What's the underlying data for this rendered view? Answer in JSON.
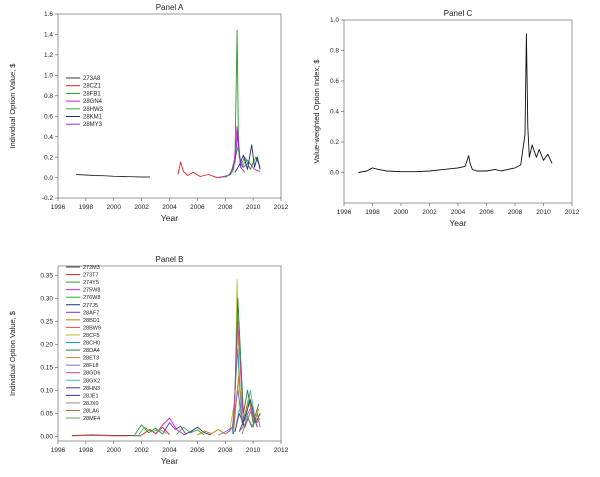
{
  "chart_data": [
    {
      "panel": "A",
      "type": "line",
      "title": "Panel A",
      "xlabel": "Year",
      "ylabel": "Individual Option Value, $",
      "xlim": [
        1996,
        2012
      ],
      "ylim": [
        -0.2,
        1.6
      ],
      "xticks": [
        1996,
        1998,
        2000,
        2002,
        2004,
        2006,
        2008,
        2010,
        2012
      ],
      "yticks": [
        -0.2,
        0.0,
        0.2,
        0.4,
        0.6,
        0.8,
        1.0,
        1.2,
        1.4,
        1.6
      ],
      "ytick_labels": [
        "-0.2",
        "0.0",
        "0.2",
        "0.4",
        "0.6",
        "0.8",
        "1.0",
        "1.2",
        "1.4",
        "1.6"
      ],
      "grid": false,
      "legend_position": "center-left",
      "series": [
        {
          "name": "273A8",
          "color": "#333333",
          "x": [
            1997.3,
            1998.0,
            1998.6,
            1999.3,
            2000.0,
            2000.6,
            2001.3,
            2002.0,
            2002.6
          ],
          "y": [
            0.03,
            0.025,
            0.02,
            0.018,
            0.012,
            0.01,
            0.008,
            0.005,
            0.005
          ]
        },
        {
          "name": "28CZ1",
          "color": "#e02020",
          "x": [
            2004.6,
            2004.8,
            2005.0,
            2005.3,
            2005.7,
            2006.2,
            2006.8,
            2007.4,
            2008.0
          ],
          "y": [
            0.03,
            0.15,
            0.06,
            0.02,
            0.05,
            0.01,
            0.03,
            0.0,
            0.01
          ]
        },
        {
          "name": "28FB1",
          "color": "#2a9a2a",
          "x": [
            2007.5,
            2008.0,
            2008.4,
            2008.7,
            2008.85,
            2008.95,
            2009.1,
            2009.4,
            2009.8,
            2010.2,
            2010.5
          ],
          "y": [
            0.0,
            0.01,
            0.03,
            0.2,
            1.44,
            0.3,
            0.12,
            0.2,
            0.08,
            0.2,
            0.1
          ]
        },
        {
          "name": "28GN4",
          "color": "#d020d0",
          "x": [
            2007.5,
            2008.2,
            2008.6,
            2008.85,
            2009.0,
            2009.3,
            2009.7,
            2010.1,
            2010.5
          ],
          "y": [
            0.0,
            0.02,
            0.08,
            0.5,
            0.2,
            0.1,
            0.15,
            0.08,
            0.06
          ]
        },
        {
          "name": "28HW3",
          "color": "#30b030",
          "x": [
            2008.0,
            2008.5,
            2008.9,
            2009.2,
            2009.5,
            2009.9,
            2010.2,
            2010.5
          ],
          "y": [
            0.0,
            0.05,
            0.3,
            0.1,
            0.18,
            0.12,
            0.2,
            0.1
          ]
        },
        {
          "name": "28KM1",
          "color": "#1f2a80",
          "x": [
            2008.7,
            2009.0,
            2009.3,
            2009.6,
            2009.9,
            2010.1,
            2010.3,
            2010.5
          ],
          "y": [
            0.05,
            0.12,
            0.22,
            0.08,
            0.32,
            0.1,
            0.2,
            0.08
          ]
        },
        {
          "name": "28MY3",
          "color": "#8a2be2",
          "x": [
            2008.3,
            2008.7,
            2008.9,
            2009.1,
            2009.4
          ],
          "y": [
            0.02,
            0.15,
            0.45,
            0.1,
            0.05
          ]
        }
      ]
    },
    {
      "panel": "C",
      "type": "line",
      "title": "Panel C",
      "xlabel": "Year",
      "ylabel": "Value-weighted Option Index, $",
      "xlim": [
        1996,
        2012
      ],
      "ylim": [
        -0.2,
        1.0
      ],
      "xticks": [
        1996,
        1998,
        2000,
        2002,
        2004,
        2006,
        2008,
        2010,
        2012
      ],
      "yticks": [
        0.0,
        0.2,
        0.4,
        0.6,
        0.8,
        1.0
      ],
      "ytick_labels": [
        "0.0",
        "0.2",
        "0.4",
        "0.6",
        "0.8",
        "1.0"
      ],
      "grid": false,
      "series": [
        {
          "color": "#111111",
          "x": [
            1997.0,
            1997.6,
            1998.0,
            1998.4,
            1999.0,
            2000.0,
            2001.0,
            2002.0,
            2003.0,
            2004.0,
            2004.5,
            2004.75,
            2004.85,
            2005.0,
            2005.3,
            2006.0,
            2006.6,
            2007.0,
            2007.5,
            2008.0,
            2008.4,
            2008.7,
            2008.8,
            2008.9,
            2009.0,
            2009.2,
            2009.5,
            2009.7,
            2010.0,
            2010.3,
            2010.6
          ],
          "y": [
            0.0,
            0.01,
            0.03,
            0.02,
            0.01,
            0.005,
            0.005,
            0.01,
            0.02,
            0.03,
            0.04,
            0.11,
            0.06,
            0.02,
            0.01,
            0.01,
            0.02,
            0.01,
            0.02,
            0.03,
            0.05,
            0.25,
            0.91,
            0.3,
            0.1,
            0.18,
            0.1,
            0.15,
            0.08,
            0.12,
            0.06
          ]
        }
      ]
    },
    {
      "panel": "B",
      "type": "line",
      "title": "Panel B",
      "xlabel": "Year",
      "ylabel": "Individual Option Value, $",
      "xlim": [
        1996,
        2012
      ],
      "ylim": [
        -0.01,
        0.37
      ],
      "xticks": [
        1996,
        1998,
        2000,
        2002,
        2004,
        2006,
        2008,
        2010,
        2012
      ],
      "yticks": [
        0.0,
        0.05,
        0.1,
        0.15,
        0.2,
        0.25,
        0.3,
        0.35
      ],
      "ytick_labels": [
        "0.00",
        "0.05",
        "0.10",
        "0.15",
        "0.20",
        "0.25",
        "0.30",
        "0.35"
      ],
      "grid": false,
      "legend_position": "top-left",
      "series": [
        {
          "name": "272M3",
          "color": "#444444",
          "x": [
            1997.0,
            1998.5,
            2000.0,
            2001.0,
            2002.0
          ],
          "y": [
            0.002,
            0.003,
            0.002,
            0.002,
            0.001
          ]
        },
        {
          "name": "273T7",
          "color": "#e02020",
          "x": [
            2002.0,
            2002.6,
            2003.0,
            2003.5,
            2004.0
          ],
          "y": [
            0.003,
            0.015,
            0.006,
            0.02,
            0.004
          ]
        },
        {
          "name": "274Y5",
          "color": "#2a9a2a",
          "x": [
            2001.5,
            2002.0,
            2002.5,
            2003.0,
            2003.5
          ],
          "y": [
            0.004,
            0.025,
            0.008,
            0.018,
            0.005
          ]
        },
        {
          "name": "275W8",
          "color": "#d020d0",
          "x": [
            2003.0,
            2003.5,
            2004.0,
            2004.5,
            2005.0
          ],
          "y": [
            0.005,
            0.025,
            0.04,
            0.015,
            0.005
          ]
        },
        {
          "name": "276W8",
          "color": "#30b030",
          "x": [
            2004.5,
            2005.0,
            2005.5,
            2006.0,
            2006.5
          ],
          "y": [
            0.004,
            0.02,
            0.008,
            0.014,
            0.003
          ]
        },
        {
          "name": "277J5",
          "color": "#1f2a80",
          "x": [
            2005.0,
            2005.5,
            2006.0,
            2006.5,
            2007.0
          ],
          "y": [
            0.003,
            0.01,
            0.02,
            0.008,
            0.003
          ]
        },
        {
          "name": "28AF7",
          "color": "#8a2be2",
          "x": [
            2003.5,
            2004.0,
            2004.4,
            2004.8,
            2005.2
          ],
          "y": [
            0.005,
            0.03,
            0.015,
            0.022,
            0.004
          ]
        },
        {
          "name": "28BD1",
          "color": "#c08000",
          "x": [
            2006.0,
            2006.5,
            2007.0,
            2007.5,
            2008.0
          ],
          "y": [
            0.003,
            0.012,
            0.006,
            0.015,
            0.005
          ]
        },
        {
          "name": "28BW9",
          "color": "#e05050",
          "x": [
            1997.0,
            1998.0,
            1999.0,
            2000.0,
            2001.0
          ],
          "y": [
            0.001,
            0.002,
            0.002,
            0.001,
            0.001
          ]
        },
        {
          "name": "28CF5",
          "color": "#bdbd20",
          "x": [
            2008.3,
            2008.7,
            2008.85,
            2009.0,
            2009.3,
            2009.7,
            2010.1,
            2010.4
          ],
          "y": [
            0.01,
            0.08,
            0.34,
            0.06,
            0.03,
            0.09,
            0.03,
            0.06
          ]
        },
        {
          "name": "28CH0",
          "color": "#20a0c0",
          "x": [
            2008.5,
            2008.9,
            2009.2,
            2009.5,
            2009.9,
            2010.2
          ],
          "y": [
            0.005,
            0.19,
            0.03,
            0.05,
            0.02,
            0.04
          ]
        },
        {
          "name": "28DA4",
          "color": "#208040",
          "x": [
            2008.6,
            2008.9,
            2009.3,
            2009.6,
            2010.0,
            2010.4
          ],
          "y": [
            0.005,
            0.3,
            0.05,
            0.1,
            0.03,
            0.07
          ]
        },
        {
          "name": "28ET3",
          "color": "#d08020",
          "x": [
            2008.6,
            2008.95,
            2009.3,
            2009.7,
            2010.0,
            2010.4
          ],
          "y": [
            0.01,
            0.13,
            0.04,
            0.08,
            0.04,
            0.06
          ]
        },
        {
          "name": "28FL8",
          "color": "#7070d0",
          "x": [
            2007.5,
            2008.0,
            2008.5,
            2008.9,
            2009.3
          ],
          "y": [
            0.003,
            0.01,
            0.02,
            0.1,
            0.02
          ]
        },
        {
          "name": "28GD6",
          "color": "#d04090",
          "x": [
            2008.0,
            2008.6,
            2008.9,
            2009.3,
            2009.8,
            2010.3
          ],
          "y": [
            0.005,
            0.02,
            0.25,
            0.03,
            0.06,
            0.03
          ]
        },
        {
          "name": "28GX2",
          "color": "#40c0a0",
          "x": [
            2008.7,
            2009.0,
            2009.4,
            2009.8,
            2010.2,
            2010.5
          ],
          "y": [
            0.01,
            0.06,
            0.02,
            0.1,
            0.03,
            0.05
          ]
        },
        {
          "name": "28HN3",
          "color": "#603090",
          "x": [
            2008.7,
            2009.0,
            2009.4,
            2009.9,
            2010.3
          ],
          "y": [
            0.01,
            0.05,
            0.02,
            0.06,
            0.02
          ]
        },
        {
          "name": "28JE1",
          "color": "#303090",
          "x": [
            2009.0,
            2009.4,
            2009.8,
            2010.2,
            2010.5
          ],
          "y": [
            0.01,
            0.04,
            0.08,
            0.03,
            0.05
          ]
        },
        {
          "name": "28JX0",
          "color": "#909090",
          "x": [
            2009.0,
            2009.5,
            2009.9,
            2010.3,
            2010.5
          ],
          "y": [
            0.01,
            0.03,
            0.06,
            0.03,
            0.04
          ]
        },
        {
          "name": "28LA6",
          "color": "#a07040",
          "x": [
            2009.2,
            2009.6,
            2010.0,
            2010.3,
            2010.5
          ],
          "y": [
            0.005,
            0.04,
            0.02,
            0.05,
            0.02
          ]
        },
        {
          "name": "28MF4",
          "color": "#60b060",
          "x": [
            2001.8,
            2002.2,
            2002.7,
            2003.3,
            2003.8
          ],
          "y": [
            0.004,
            0.02,
            0.01,
            0.015,
            0.006
          ]
        }
      ]
    }
  ]
}
